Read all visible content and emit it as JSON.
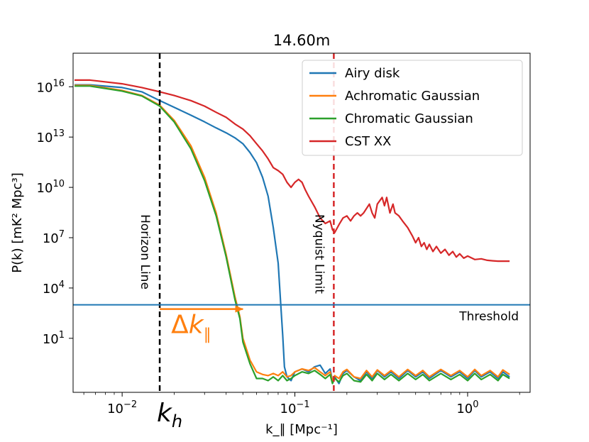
{
  "chart_data": {
    "type": "line",
    "title": "14.60m",
    "xlabel": "k_∥ [Mpc⁻¹]",
    "ylabel": "P(k) [mK² Mpc³]",
    "xscale": "log",
    "yscale": "log",
    "xlim": [
      0.0052,
      2.3
    ],
    "ylim": [
      0.006,
      1e+18
    ],
    "grid": false,
    "legend_position": "top-right",
    "x_ticks": [
      {
        "value": 0.01,
        "base": "10",
        "exp": "−2"
      },
      {
        "value": 0.1,
        "base": "10",
        "exp": "−1"
      },
      {
        "value": 1,
        "base": "10",
        "exp": "0"
      }
    ],
    "y_ticks": [
      {
        "value": 10,
        "base": "10",
        "exp": "1"
      },
      {
        "value": 10000,
        "base": "10",
        "exp": "4"
      },
      {
        "value": 10000000,
        "base": "10",
        "exp": "7"
      },
      {
        "value": 10000000000,
        "base": "10",
        "exp": "10"
      },
      {
        "value": 10000000000000,
        "base": "10",
        "exp": "13"
      },
      {
        "value": 10000000000000000,
        "base": "10",
        "exp": "16"
      }
    ],
    "series": [
      {
        "name": "Airy disk",
        "color": "#1f77b4",
        "points": [
          [
            0.0053,
            1.3e+16
          ],
          [
            0.0065,
            1.3e+16
          ],
          [
            0.01,
            9000000000000000.0
          ],
          [
            0.013,
            5000000000000000.0
          ],
          [
            0.0165,
            1500000000000000.0
          ],
          [
            0.02,
            600000000000000.0
          ],
          [
            0.025,
            200000000000000.0
          ],
          [
            0.03,
            80000000000000.0
          ],
          [
            0.035,
            35000000000000.0
          ],
          [
            0.04,
            18000000000000.0
          ],
          [
            0.045,
            9000000000000.0
          ],
          [
            0.05,
            4000000000000.0
          ],
          [
            0.055,
            1200000000000.0
          ],
          [
            0.06,
            300000000000.0
          ],
          [
            0.065,
            40000000000.0
          ],
          [
            0.07,
            3000000000.0
          ],
          [
            0.075,
            40000000.0
          ],
          [
            0.08,
            300000.0
          ],
          [
            0.083,
            800
          ],
          [
            0.085,
            15
          ],
          [
            0.087,
            0.2
          ],
          [
            0.09,
            0.05
          ],
          [
            0.095,
            0.03
          ],
          [
            0.1,
            0.1
          ],
          [
            0.11,
            0.15
          ],
          [
            0.12,
            0.1
          ],
          [
            0.13,
            0.2
          ],
          [
            0.14,
            0.25
          ],
          [
            0.15,
            0.08
          ],
          [
            0.16,
            0.15
          ],
          [
            0.165,
            0.03
          ],
          [
            0.17,
            0.05
          ],
          [
            0.18,
            0.02
          ],
          [
            0.19,
            0.08
          ],
          [
            0.2,
            0.12
          ],
          [
            0.22,
            0.05
          ],
          [
            0.24,
            0.03
          ],
          [
            0.26,
            0.1
          ],
          [
            0.28,
            0.04
          ],
          [
            0.3,
            0.12
          ],
          [
            0.33,
            0.05
          ],
          [
            0.36,
            0.1
          ],
          [
            0.4,
            0.04
          ],
          [
            0.45,
            0.12
          ],
          [
            0.5,
            0.05
          ],
          [
            0.55,
            0.1
          ],
          [
            0.6,
            0.04
          ],
          [
            0.7,
            0.12
          ],
          [
            0.8,
            0.05
          ],
          [
            0.9,
            0.1
          ],
          [
            1.0,
            0.04
          ],
          [
            1.1,
            0.12
          ],
          [
            1.2,
            0.05
          ],
          [
            1.35,
            0.1
          ],
          [
            1.5,
            0.04
          ],
          [
            1.6,
            0.1
          ],
          [
            1.75,
            0.05
          ]
        ]
      },
      {
        "name": "Achromatic Gaussian",
        "color": "#ff7f0e",
        "points": [
          [
            0.0053,
            1.2e+16
          ],
          [
            0.0065,
            1.2e+16
          ],
          [
            0.01,
            6000000000000000.0
          ],
          [
            0.013,
            3000000000000000.0
          ],
          [
            0.0165,
            800000000000000.0
          ],
          [
            0.02,
            100000000000000.0
          ],
          [
            0.025,
            3000000000000.0
          ],
          [
            0.03,
            40000000000.0
          ],
          [
            0.035,
            300000000.0
          ],
          [
            0.04,
            1000000.0
          ],
          [
            0.045,
            3000.0
          ],
          [
            0.048,
            200
          ],
          [
            0.05,
            10
          ],
          [
            0.055,
            0.5
          ],
          [
            0.06,
            0.1
          ],
          [
            0.065,
            0.07
          ],
          [
            0.07,
            0.06
          ],
          [
            0.075,
            0.08
          ],
          [
            0.08,
            0.06
          ],
          [
            0.085,
            0.1
          ],
          [
            0.09,
            0.05
          ],
          [
            0.095,
            0.06
          ],
          [
            0.1,
            0.1
          ],
          [
            0.11,
            0.15
          ],
          [
            0.12,
            0.12
          ],
          [
            0.13,
            0.18
          ],
          [
            0.14,
            0.1
          ],
          [
            0.15,
            0.06
          ],
          [
            0.16,
            0.1
          ],
          [
            0.165,
            0.03
          ],
          [
            0.17,
            0.06
          ],
          [
            0.18,
            0.04
          ],
          [
            0.19,
            0.1
          ],
          [
            0.2,
            0.14
          ],
          [
            0.22,
            0.05
          ],
          [
            0.24,
            0.04
          ],
          [
            0.26,
            0.12
          ],
          [
            0.28,
            0.05
          ],
          [
            0.3,
            0.13
          ],
          [
            0.33,
            0.06
          ],
          [
            0.36,
            0.12
          ],
          [
            0.4,
            0.05
          ],
          [
            0.45,
            0.14
          ],
          [
            0.5,
            0.06
          ],
          [
            0.55,
            0.12
          ],
          [
            0.6,
            0.05
          ],
          [
            0.7,
            0.14
          ],
          [
            0.8,
            0.06
          ],
          [
            0.9,
            0.12
          ],
          [
            1.0,
            0.05
          ],
          [
            1.1,
            0.14
          ],
          [
            1.2,
            0.06
          ],
          [
            1.35,
            0.12
          ],
          [
            1.5,
            0.05
          ],
          [
            1.6,
            0.13
          ],
          [
            1.75,
            0.07
          ]
        ]
      },
      {
        "name": "Chromatic Gaussian",
        "color": "#2ca02c",
        "points": [
          [
            0.0053,
            1.1e+16
          ],
          [
            0.0065,
            1.1e+16
          ],
          [
            0.01,
            5500000000000000.0
          ],
          [
            0.013,
            2800000000000000.0
          ],
          [
            0.0165,
            700000000000000.0
          ],
          [
            0.02,
            80000000000000.0
          ],
          [
            0.025,
            2000000000000.0
          ],
          [
            0.03,
            25000000000.0
          ],
          [
            0.035,
            200000000.0
          ],
          [
            0.04,
            700000.0
          ],
          [
            0.045,
            2000.0
          ],
          [
            0.048,
            150
          ],
          [
            0.05,
            6
          ],
          [
            0.055,
            0.3
          ],
          [
            0.06,
            0.04
          ],
          [
            0.065,
            0.04
          ],
          [
            0.07,
            0.03
          ],
          [
            0.075,
            0.05
          ],
          [
            0.08,
            0.03
          ],
          [
            0.085,
            0.06
          ],
          [
            0.09,
            0.03
          ],
          [
            0.095,
            0.04
          ],
          [
            0.1,
            0.06
          ],
          [
            0.11,
            0.1
          ],
          [
            0.12,
            0.08
          ],
          [
            0.13,
            0.12
          ],
          [
            0.14,
            0.07
          ],
          [
            0.15,
            0.04
          ],
          [
            0.16,
            0.07
          ],
          [
            0.165,
            0.02
          ],
          [
            0.17,
            0.04
          ],
          [
            0.18,
            0.025
          ],
          [
            0.19,
            0.06
          ],
          [
            0.2,
            0.08
          ],
          [
            0.22,
            0.03
          ],
          [
            0.24,
            0.025
          ],
          [
            0.26,
            0.07
          ],
          [
            0.28,
            0.03
          ],
          [
            0.3,
            0.08
          ],
          [
            0.33,
            0.035
          ],
          [
            0.36,
            0.07
          ],
          [
            0.4,
            0.03
          ],
          [
            0.45,
            0.08
          ],
          [
            0.5,
            0.035
          ],
          [
            0.55,
            0.07
          ],
          [
            0.6,
            0.03
          ],
          [
            0.7,
            0.08
          ],
          [
            0.8,
            0.035
          ],
          [
            0.9,
            0.07
          ],
          [
            1.0,
            0.03
          ],
          [
            1.1,
            0.08
          ],
          [
            1.2,
            0.035
          ],
          [
            1.35,
            0.07
          ],
          [
            1.5,
            0.03
          ],
          [
            1.6,
            0.07
          ],
          [
            1.75,
            0.04
          ]
        ]
      },
      {
        "name": "CST XX",
        "color": "#d62728",
        "points": [
          [
            0.0053,
            2.5e+16
          ],
          [
            0.0065,
            2.5e+16
          ],
          [
            0.01,
            1.5e+16
          ],
          [
            0.013,
            9000000000000000.0
          ],
          [
            0.0165,
            5000000000000000.0
          ],
          [
            0.02,
            3000000000000000.0
          ],
          [
            0.025,
            1500000000000000.0
          ],
          [
            0.03,
            700000000000000.0
          ],
          [
            0.035,
            300000000000000.0
          ],
          [
            0.04,
            150000000000000.0
          ],
          [
            0.045,
            60000000000000.0
          ],
          [
            0.05,
            30000000000000.0
          ],
          [
            0.055,
            12000000000000.0
          ],
          [
            0.06,
            4000000000000.0
          ],
          [
            0.065,
            1500000000000.0
          ],
          [
            0.07,
            500000000000.0
          ],
          [
            0.075,
            150000000000.0
          ],
          [
            0.08,
            100000000000.0
          ],
          [
            0.085,
            60000000000.0
          ],
          [
            0.09,
            20000000000.0
          ],
          [
            0.095,
            10000000000.0
          ],
          [
            0.1,
            20000000000.0
          ],
          [
            0.105,
            30000000000.0
          ],
          [
            0.11,
            20000000000.0
          ],
          [
            0.115,
            7000000000.0
          ],
          [
            0.12,
            3000000000.0
          ],
          [
            0.13,
            700000000.0
          ],
          [
            0.14,
            150000000.0
          ],
          [
            0.15,
            70000000.0
          ],
          [
            0.16,
            100000000.0
          ],
          [
            0.165,
            30000000.0
          ],
          [
            0.17,
            20000000.0
          ],
          [
            0.18,
            60000000.0
          ],
          [
            0.19,
            150000000.0
          ],
          [
            0.2,
            200000000.0
          ],
          [
            0.21,
            100000000.0
          ],
          [
            0.22,
            200000000.0
          ],
          [
            0.23,
            300000000.0
          ],
          [
            0.24,
            200000000.0
          ],
          [
            0.25,
            300000000.0
          ],
          [
            0.27,
            1000000000.0
          ],
          [
            0.28,
            300000000.0
          ],
          [
            0.29,
            150000000.0
          ],
          [
            0.3,
            1000000000.0
          ],
          [
            0.32,
            2500000000.0
          ],
          [
            0.33,
            800000000.0
          ],
          [
            0.34,
            2500000000.0
          ],
          [
            0.355,
            300000000.0
          ],
          [
            0.37,
            1000000000.0
          ],
          [
            0.38,
            300000000.0
          ],
          [
            0.4,
            200000000.0
          ],
          [
            0.42,
            100000000.0
          ],
          [
            0.45,
            40000000.0
          ],
          [
            0.48,
            12000000.0
          ],
          [
            0.5,
            5000000.0
          ],
          [
            0.52,
            10000000.0
          ],
          [
            0.54,
            3000000.0
          ],
          [
            0.56,
            5000000.0
          ],
          [
            0.58,
            2000000.0
          ],
          [
            0.6,
            4000000.0
          ],
          [
            0.63,
            1500000.0
          ],
          [
            0.66,
            3000000.0
          ],
          [
            0.7,
            1200000.0
          ],
          [
            0.74,
            2000000.0
          ],
          [
            0.78,
            900000.0
          ],
          [
            0.82,
            1500000.0
          ],
          [
            0.86,
            700000.0
          ],
          [
            0.9,
            1100000.0
          ],
          [
            0.95,
            600000.0
          ],
          [
            1.0,
            800000.0
          ],
          [
            1.1,
            500000.0
          ],
          [
            1.2,
            550000.0
          ],
          [
            1.3,
            450000.0
          ],
          [
            1.4,
            420000.0
          ],
          [
            1.5,
            400000.0
          ],
          [
            1.6,
            400000.0
          ],
          [
            1.75,
            400000.0
          ]
        ]
      }
    ],
    "lines": {
      "horizon": {
        "x": 0.0165,
        "color": "#000000",
        "label": "Horizon Line"
      },
      "nyquist": {
        "x": 0.168,
        "color": "#d62728",
        "label": "Nyquist Limit"
      },
      "threshold": {
        "y": 1000,
        "color": "#1f77b4",
        "label": "Threshold"
      }
    },
    "annotations": {
      "kh": {
        "base": "k",
        "sub": "h",
        "x": 0.0165
      },
      "delta": {
        "symbol": "Δ",
        "var": "k",
        "sub": "∥",
        "from": 0.0165,
        "to": 0.05,
        "y": 1000,
        "color": "#ff7f0e"
      }
    }
  }
}
